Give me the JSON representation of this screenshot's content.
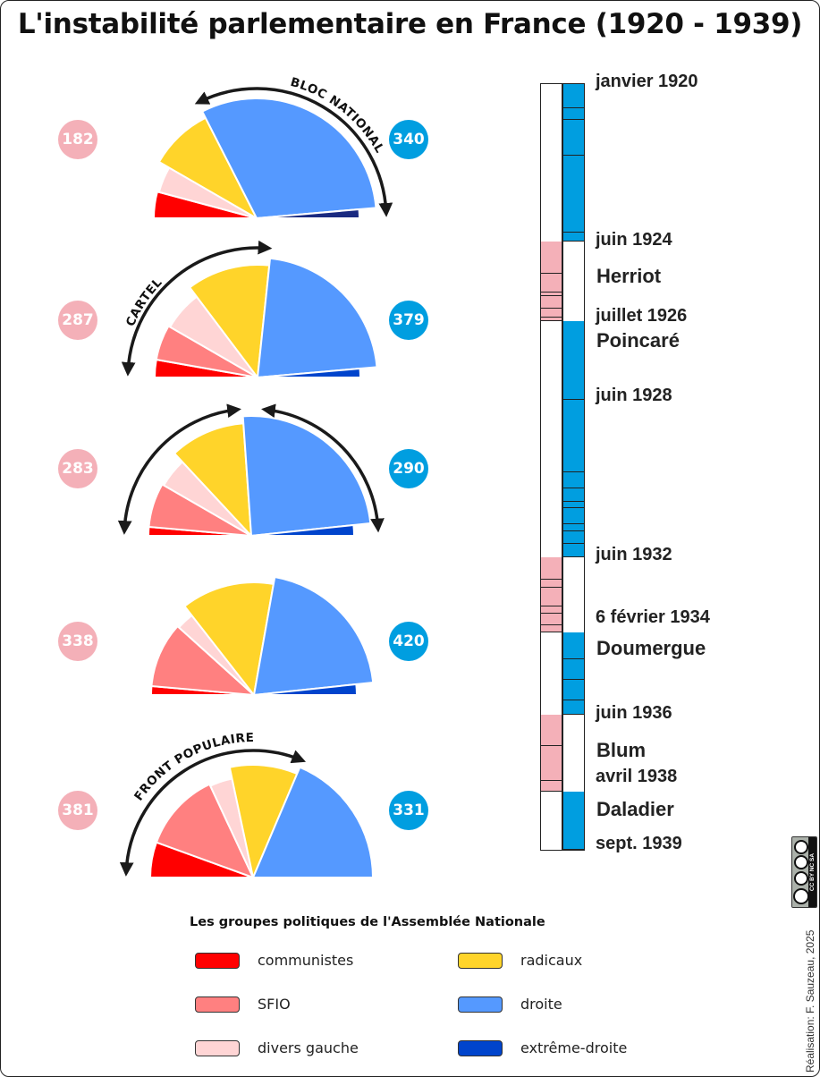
{
  "title": "L'instabilité parlementaire en France (1920 - 1939)",
  "colors": {
    "communistes": "#ff0000",
    "sfio": "#ff8080",
    "divers_gauche": "#ffd5d5",
    "radicaux": "#ffd42a",
    "droite": "#5599ff",
    "extreme_droite": "#0044cc",
    "left_badge": "#f4b0b8",
    "right_badge": "#009ee0",
    "timeline_left": "#f4b0b8",
    "timeline_right": "#009ee0"
  },
  "chambers": [
    {
      "left_total": "182",
      "right_total": "340",
      "coalition_label": "BLOC NATIONAL",
      "wedges": [
        {
          "group": "communistes",
          "degrees": 15
        },
        {
          "group": "divers_gauche",
          "degrees": 15
        },
        {
          "group": "radicaux",
          "degrees": 33
        },
        {
          "group": "droite",
          "degrees": 112
        },
        {
          "group": "extreme_droite",
          "degrees": 5,
          "color": "#1a2a80"
        }
      ]
    },
    {
      "left_total": "287",
      "right_total": "379",
      "coalition_label": "CARTEL",
      "wedges": [
        {
          "group": "communistes",
          "degrees": 10
        },
        {
          "group": "sfio",
          "degrees": 20
        },
        {
          "group": "divers_gauche",
          "degrees": 23
        },
        {
          "group": "radicaux",
          "degrees": 43
        },
        {
          "group": "droite",
          "degrees": 79
        },
        {
          "group": "extreme_droite",
          "degrees": 5
        }
      ]
    },
    {
      "left_total": "283",
      "right_total": "290",
      "coalition_label": "",
      "wedges": [
        {
          "group": "communistes",
          "degrees": 5
        },
        {
          "group": "sfio",
          "degrees": 25
        },
        {
          "group": "divers_gauche",
          "degrees": 17
        },
        {
          "group": "radicaux",
          "degrees": 39
        },
        {
          "group": "droite",
          "degrees": 88
        },
        {
          "group": "extreme_droite",
          "degrees": 6
        }
      ]
    },
    {
      "left_total": "338",
      "right_total": "420",
      "coalition_label": "",
      "wedges": [
        {
          "group": "communistes",
          "degrees": 5
        },
        {
          "group": "sfio",
          "degrees": 37
        },
        {
          "group": "divers_gauche",
          "degrees": 10
        },
        {
          "group": "radicaux",
          "degrees": 48
        },
        {
          "group": "droite",
          "degrees": 74
        },
        {
          "group": "extreme_droite",
          "degrees": 6
        }
      ]
    },
    {
      "left_total": "381",
      "right_total": "331",
      "coalition_label": "FRONT POPULAIRE",
      "wedges": [
        {
          "group": "communistes",
          "degrees": 20
        },
        {
          "group": "sfio",
          "degrees": 45
        },
        {
          "group": "divers_gauche",
          "degrees": 13
        },
        {
          "group": "radicaux",
          "degrees": 35
        },
        {
          "group": "droite",
          "degrees": 67
        }
      ]
    }
  ],
  "timeline": {
    "labels": [
      {
        "text": "janvier 1920",
        "kind": "date"
      },
      {
        "text": "juin 1924",
        "kind": "date"
      },
      {
        "text": "Herriot",
        "kind": "gov"
      },
      {
        "text": "juillet 1926",
        "kind": "date"
      },
      {
        "text": "Poincaré",
        "kind": "gov"
      },
      {
        "text": "juin 1928",
        "kind": "date"
      },
      {
        "text": "juin 1932",
        "kind": "date"
      },
      {
        "text": "6 février 1934",
        "kind": "date"
      },
      {
        "text": "Doumergue",
        "kind": "gov"
      },
      {
        "text": "juin 1936",
        "kind": "date"
      },
      {
        "text": "Blum",
        "kind": "gov"
      },
      {
        "text": "avril 1938",
        "kind": "date"
      },
      {
        "text": "Daladier",
        "kind": "gov"
      },
      {
        "text": "sept. 1939",
        "kind": "date"
      }
    ],
    "left_segments": [
      [
        "1924-06",
        "1925-04"
      ],
      [
        "1925-04",
        "1925-10"
      ],
      [
        "1925-10",
        "1925-11"
      ],
      [
        "1925-11",
        "1926-03"
      ],
      [
        "1926-03",
        "1926-06"
      ],
      [
        "1926-06",
        "1926-07"
      ],
      [
        "1932-06",
        "1932-12"
      ],
      [
        "1932-12",
        "1933-02"
      ],
      [
        "1933-02",
        "1933-07"
      ],
      [
        "1933-07",
        "1933-09"
      ],
      [
        "1933-09",
        "1933-12"
      ],
      [
        "1933-12",
        "1934-02"
      ],
      [
        "1936-06",
        "1937-03"
      ],
      [
        "1937-03",
        "1938-01"
      ],
      [
        "1938-01",
        "1938-04"
      ]
    ],
    "right_segments": [
      [
        "1920-01",
        "1920-09"
      ],
      [
        "1920-09",
        "1921-01"
      ],
      [
        "1921-01",
        "1922-01"
      ],
      [
        "1922-01",
        "1924-03"
      ],
      [
        "1924-03",
        "1924-06"
      ],
      [
        "1926-07",
        "1928-06"
      ],
      [
        "1928-06",
        "1930-04"
      ],
      [
        "1930-04",
        "1930-09"
      ],
      [
        "1930-09",
        "1931-01"
      ],
      [
        "1931-01",
        "1931-03"
      ],
      [
        "1931-03",
        "1931-08"
      ],
      [
        "1931-08",
        "1931-10"
      ],
      [
        "1931-10",
        "1932-02"
      ],
      [
        "1932-02",
        "1932-06"
      ],
      [
        "1934-02",
        "1934-11"
      ],
      [
        "1934-11",
        "1935-06"
      ],
      [
        "1935-06",
        "1936-01"
      ],
      [
        "1936-01",
        "1936-06"
      ],
      [
        "1938-04",
        "1939-09"
      ]
    ]
  },
  "legend": {
    "title": "Les groupes politiques de l'Assemblée Nationale",
    "items": [
      {
        "label": "communistes",
        "group": "communistes"
      },
      {
        "label": "SFIO",
        "group": "sfio"
      },
      {
        "label": "divers gauche",
        "group": "divers_gauche"
      },
      {
        "label": "radicaux",
        "group": "radicaux"
      },
      {
        "label": "droite",
        "group": "droite"
      },
      {
        "label": "extrême-droite",
        "group": "extreme_droite"
      }
    ]
  },
  "credit": "Réalisation: F. Sauzeau, 2025",
  "license_badge": "CC BY NC SA"
}
